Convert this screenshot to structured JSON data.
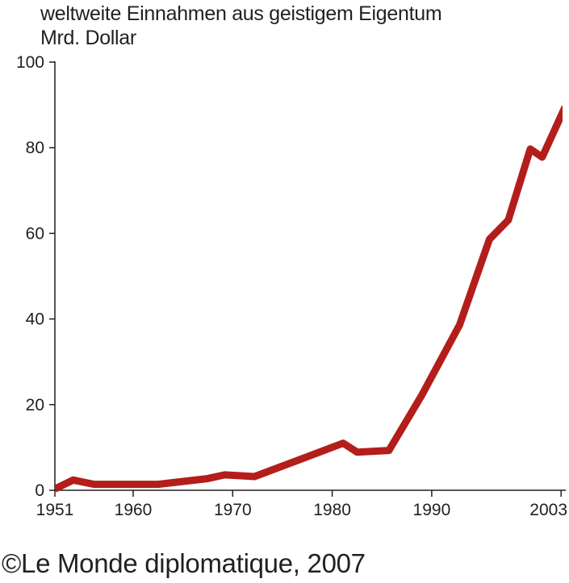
{
  "chart_data": {
    "type": "line",
    "title": "weltweite Einnahmen aus geistigem Eigentum",
    "ylabel": "Mrd. Dollar",
    "xlabel": "",
    "xlim": [
      1951,
      2003.4
    ],
    "ylim": [
      0,
      100
    ],
    "x_ticks": [
      1951,
      1960,
      1970,
      1980,
      1990,
      2003
    ],
    "y_ticks": [
      0,
      20,
      40,
      60,
      80,
      100
    ],
    "grid": false,
    "series": [
      {
        "name": "Einnahmen",
        "color": "#b31e1a",
        "x": [
          1951,
          1953.1,
          1955.5,
          1962.5,
          1967.4,
          1969.2,
          1972.2,
          1981.1,
          1982.5,
          1985.7,
          1989.0,
          1992.8,
          1995.8,
          1997.7,
          1999.9,
          2001.1,
          2003.4
        ],
        "y": [
          0.3,
          2.4,
          1.4,
          1.4,
          2.7,
          3.6,
          3.2,
          11.0,
          8.9,
          9.3,
          22.2,
          38.6,
          58.6,
          63.1,
          79.7,
          77.8,
          89.5
        ]
      }
    ]
  },
  "credit": "©Le Monde diplomatique, 2007"
}
